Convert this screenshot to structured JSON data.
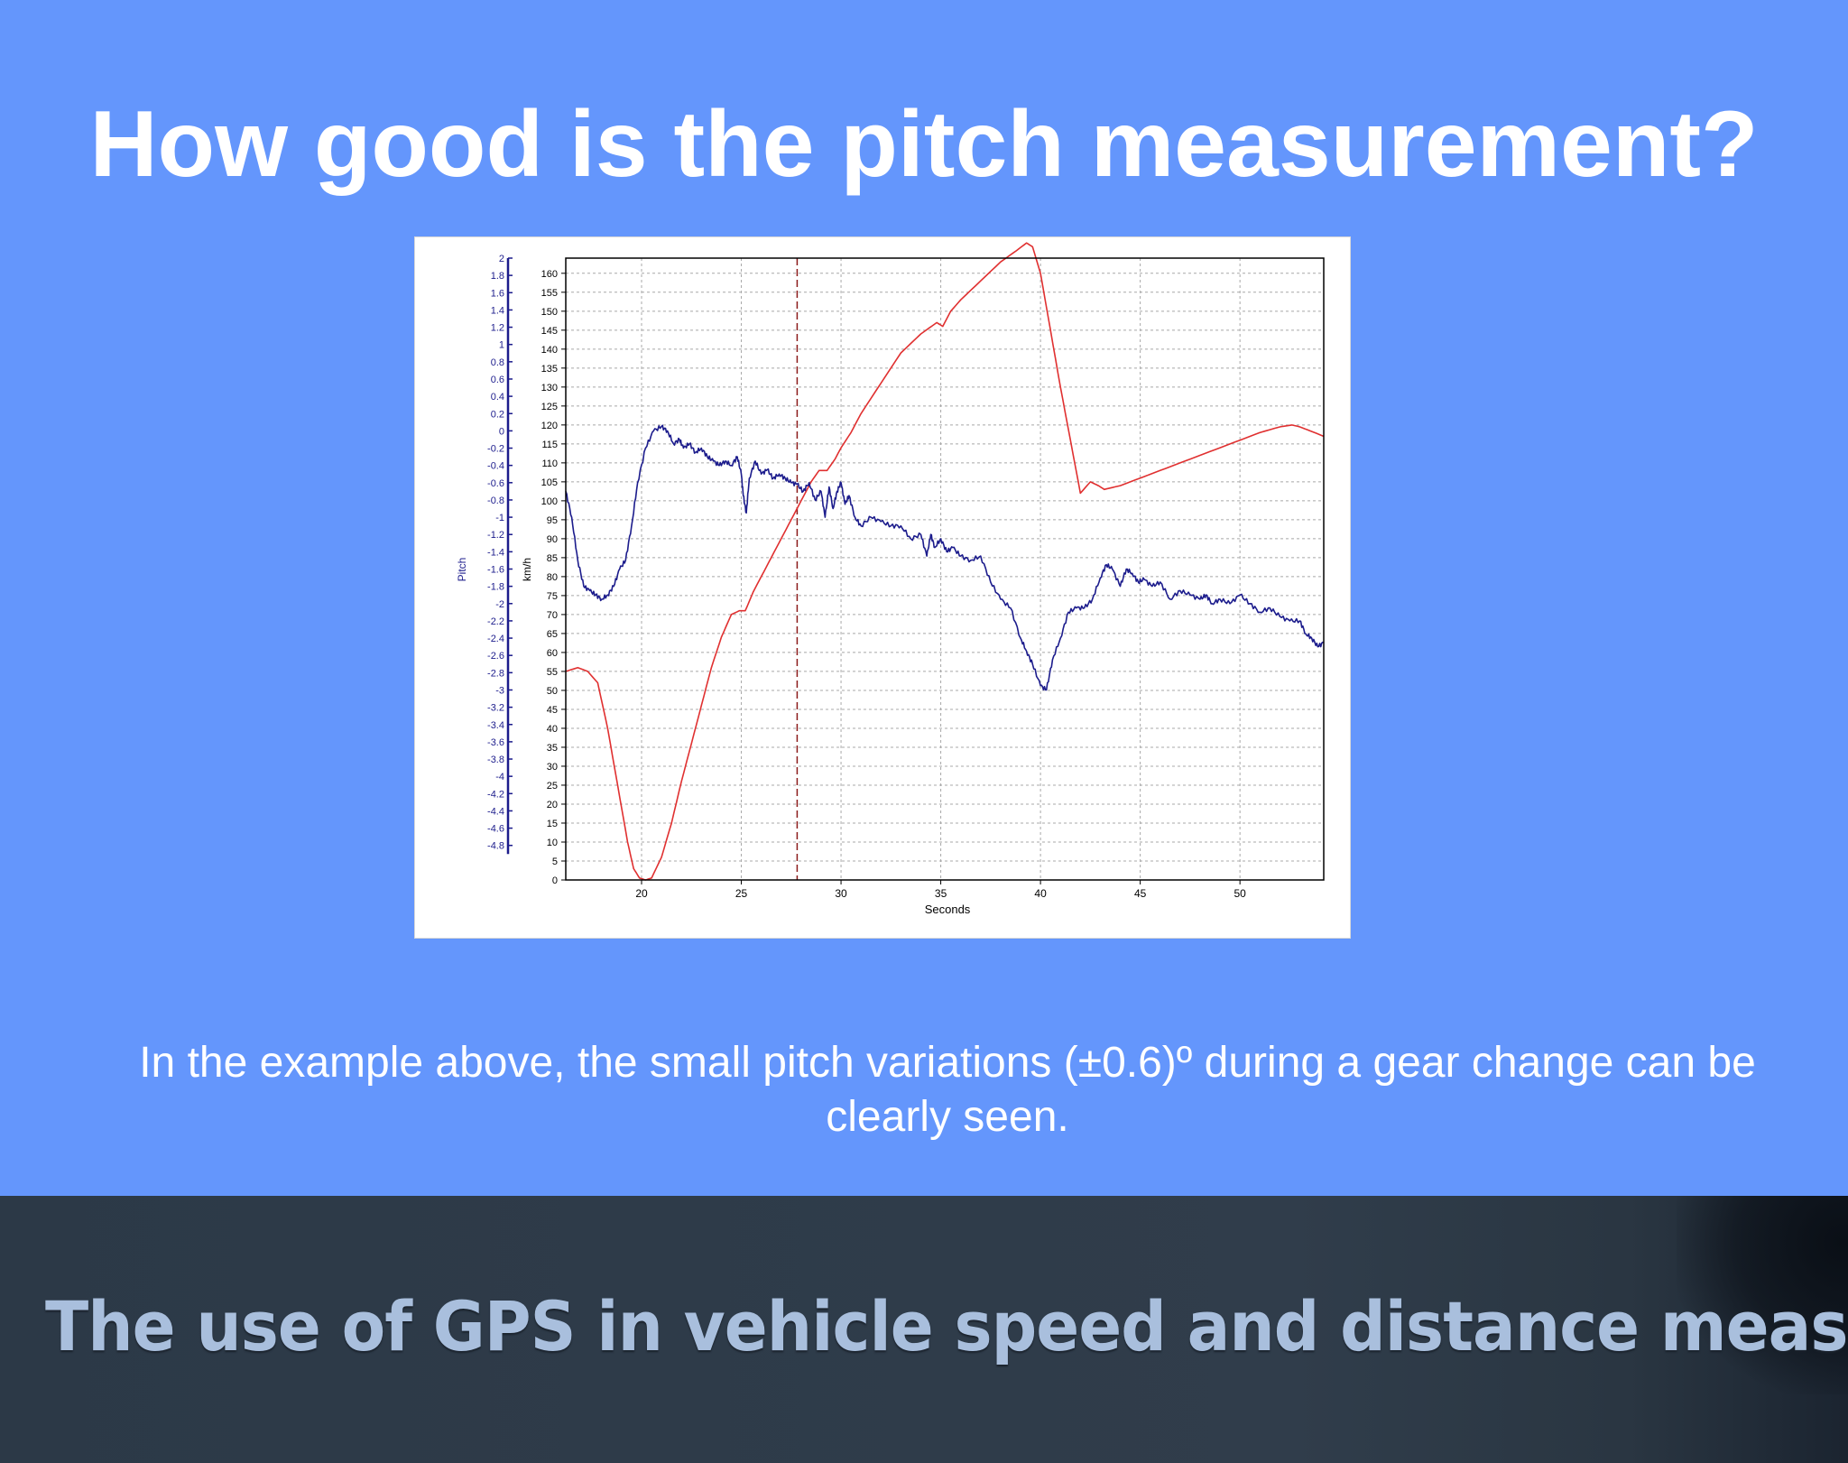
{
  "slide": {
    "title": "How good is the pitch measurement?",
    "caption": "In the example above, the small pitch variations (±0.6)º during a gear change can be clearly seen.",
    "footer": "The use of GPS in vehicle speed and distance measurement"
  },
  "chart_data": {
    "type": "line",
    "title": "",
    "xlabel": "Seconds",
    "ylabel_left": "Pitch",
    "ylabel_right": "km/h",
    "xlim": [
      16.2,
      54.2
    ],
    "x_ticks": [
      20,
      25,
      30,
      35,
      40,
      45,
      50
    ],
    "pitch_axis": {
      "lim": [
        -5.2,
        2
      ],
      "ticks": [
        2,
        1.8,
        1.6,
        1.4,
        1.2,
        1,
        0.8,
        0.6,
        0.4,
        0.2,
        0,
        -0.2,
        -0.4,
        -0.6,
        -0.8,
        -1,
        -1.2,
        -1.4,
        -1.6,
        -1.8,
        -2,
        -2.2,
        -2.4,
        -2.6,
        -2.8,
        -3,
        -3.2,
        -3.4,
        -3.6,
        -3.8,
        -4,
        -4.2,
        -4.4,
        -4.6,
        -4.8
      ]
    },
    "speed_axis": {
      "lim": [
        0,
        164
      ],
      "ticks": [
        160,
        155,
        150,
        145,
        140,
        135,
        130,
        125,
        120,
        115,
        110,
        105,
        100,
        95,
        90,
        85,
        80,
        75,
        70,
        65,
        60,
        55,
        50,
        45,
        40,
        35,
        30,
        25,
        20,
        15,
        10,
        5,
        0
      ]
    },
    "grid": true,
    "marker_line_x": 27.8,
    "colors": {
      "speed": "#e03030",
      "pitch": "#1c1c8c",
      "marker": "#8b1a1a",
      "grid": "#a8a8a8"
    },
    "series": [
      {
        "axis": "speed",
        "x": [
          16.2,
          16.8,
          17.3,
          17.8,
          18.3,
          18.8,
          19.3,
          19.6,
          19.9,
          20.2,
          20.5,
          21.0,
          21.5,
          22.0,
          22.5,
          23.0,
          23.5,
          24.0,
          24.5,
          24.9,
          25.2,
          25.6,
          26.0,
          26.5,
          27.0,
          27.5,
          28.0,
          28.5,
          28.9,
          29.3,
          29.7,
          30.0,
          30.5,
          31.0,
          32.0,
          33.0,
          34.0,
          34.8,
          35.1,
          35.5,
          36.0,
          37.0,
          38.0,
          38.8,
          39.3,
          39.6,
          40.0,
          40.5,
          41.0,
          41.5,
          42.0,
          42.5,
          42.9,
          43.2,
          43.6,
          44.0,
          45.0,
          46.0,
          47.0,
          48.0,
          49.0,
          50.0,
          51.0,
          52.0,
          52.6,
          53.0,
          53.5,
          54.2
        ],
        "values": [
          55,
          56,
          55,
          52,
          40,
          25,
          10,
          3,
          0.5,
          0,
          0.5,
          6,
          15,
          26,
          36,
          46,
          56,
          64,
          70,
          71,
          71,
          76,
          80,
          85,
          90,
          95,
          100,
          105,
          108,
          108,
          111,
          114,
          118,
          123,
          131,
          139,
          144,
          147,
          146,
          150,
          153,
          158,
          163,
          166,
          168,
          167,
          160,
          145,
          130,
          116,
          102,
          105,
          104,
          103,
          103.5,
          104,
          106,
          108,
          110,
          112,
          114,
          116,
          118,
          119.5,
          120,
          119.5,
          118.5,
          117
        ]
      },
      {
        "axis": "pitch",
        "x": [
          16.2,
          16.5,
          16.8,
          17.1,
          17.4,
          17.7,
          18.0,
          18.3,
          18.6,
          18.9,
          19.2,
          19.5,
          19.8,
          20.2,
          20.6,
          21.0,
          21.3,
          21.6,
          21.9,
          22.1,
          22.4,
          22.7,
          23.0,
          23.3,
          23.6,
          23.9,
          24.2,
          24.5,
          24.8,
          25.0,
          25.1,
          25.25,
          25.4,
          25.7,
          26.0,
          26.3,
          26.6,
          26.9,
          27.2,
          27.5,
          27.8,
          28.1,
          28.4,
          28.7,
          29.0,
          29.2,
          29.4,
          29.6,
          29.8,
          30.0,
          30.2,
          30.4,
          30.7,
          31.0,
          31.5,
          32.0,
          32.5,
          33.0,
          33.5,
          34.0,
          34.3,
          34.5,
          34.7,
          35.0,
          35.3,
          35.6,
          36.0,
          36.5,
          37.0,
          37.5,
          38.0,
          38.5,
          39.0,
          39.3,
          39.6,
          40.0,
          40.3,
          40.6,
          41.0,
          41.4,
          41.8,
          42.2,
          42.6,
          43.0,
          43.3,
          43.6,
          44.0,
          44.3,
          44.6,
          44.9,
          45.2,
          45.6,
          46.0,
          46.5,
          47.0,
          47.5,
          48.0,
          48.3,
          48.6,
          49.0,
          49.5,
          50.0,
          50.5,
          51.0,
          51.5,
          52.0,
          52.5,
          53.0,
          53.3,
          53.6,
          53.9,
          54.2
        ],
        "values": [
          -0.7,
          -1.0,
          -1.5,
          -1.8,
          -1.85,
          -1.9,
          -1.95,
          -1.9,
          -1.8,
          -1.6,
          -1.5,
          -1.1,
          -0.6,
          -0.2,
          0.0,
          0.05,
          0.0,
          -0.15,
          -0.1,
          -0.2,
          -0.15,
          -0.25,
          -0.2,
          -0.3,
          -0.35,
          -0.4,
          -0.35,
          -0.4,
          -0.3,
          -0.5,
          -0.75,
          -0.95,
          -0.55,
          -0.35,
          -0.5,
          -0.45,
          -0.55,
          -0.5,
          -0.55,
          -0.6,
          -0.62,
          -0.7,
          -0.6,
          -0.8,
          -0.7,
          -1.0,
          -0.65,
          -0.9,
          -0.7,
          -0.6,
          -0.85,
          -0.75,
          -1.0,
          -1.1,
          -1.0,
          -1.05,
          -1.1,
          -1.1,
          -1.25,
          -1.2,
          -1.45,
          -1.2,
          -1.35,
          -1.25,
          -1.4,
          -1.35,
          -1.45,
          -1.5,
          -1.45,
          -1.75,
          -1.95,
          -2.05,
          -2.4,
          -2.55,
          -2.7,
          -2.95,
          -3.0,
          -2.65,
          -2.4,
          -2.1,
          -2.05,
          -2.05,
          -1.95,
          -1.7,
          -1.55,
          -1.6,
          -1.8,
          -1.6,
          -1.65,
          -1.75,
          -1.72,
          -1.8,
          -1.75,
          -1.95,
          -1.85,
          -1.9,
          -1.95,
          -1.9,
          -2.0,
          -1.95,
          -2.0,
          -1.9,
          -2.0,
          -2.1,
          -2.05,
          -2.15,
          -2.2,
          -2.2,
          -2.35,
          -2.4,
          -2.5,
          -2.45
        ]
      }
    ]
  }
}
